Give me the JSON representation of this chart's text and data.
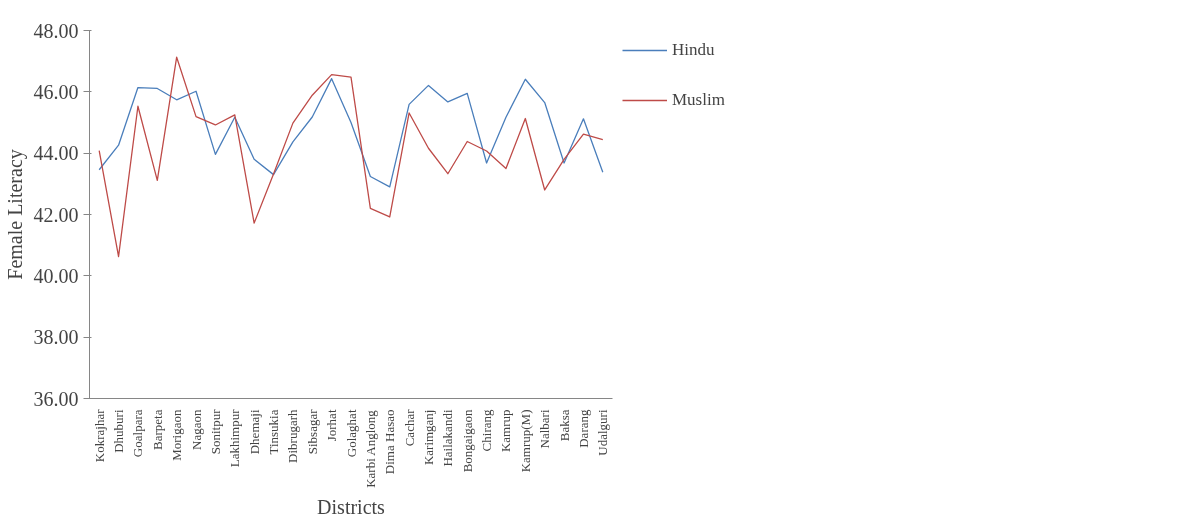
{
  "chart_data": {
    "type": "line",
    "xlabel": "Districts",
    "ylabel": "Female Literacy",
    "categories": [
      "Kokrajhar",
      "Dhuburi",
      "Goalpara",
      "Barpeta",
      "Morigaon",
      "Nagaon",
      "Sonitpur",
      "Lakhimpur",
      "Dhemaji",
      "Tinsukia",
      "Dibrugarh",
      "Sibsagar",
      "Jorhat",
      "Golaghat",
      "Karbi Anglong",
      "Dima Hasao",
      "Cachar",
      "Karimganj",
      "Hailakandi",
      "Bongaigaon",
      "Chirang",
      "Kamrup",
      "Kamrup(M)",
      "Nalbari",
      "Baksa",
      "Darang",
      "Udalguri"
    ],
    "series": [
      {
        "name": "Hindu",
        "color": "#4a7ebb",
        "values": [
          43.46,
          44.26,
          46.14,
          46.11,
          45.74,
          46.02,
          43.96,
          45.17,
          43.8,
          43.3,
          44.37,
          45.18,
          46.43,
          45.0,
          43.24,
          42.9,
          45.59,
          46.21,
          45.67,
          45.95,
          43.68,
          45.17,
          46.41,
          45.65,
          43.68,
          45.12,
          43.38
        ]
      },
      {
        "name": "Muslim",
        "color": "#be4b48",
        "values": [
          44.08,
          40.63,
          45.53,
          43.11,
          47.13,
          45.19,
          44.92,
          45.25,
          41.72,
          43.32,
          44.98,
          45.89,
          46.56,
          46.48,
          42.2,
          41.92,
          45.31,
          44.16,
          43.33,
          44.38,
          44.07,
          43.5,
          45.13,
          42.8,
          43.8,
          44.62,
          44.44
        ]
      }
    ],
    "ylim": [
      36,
      48
    ],
    "yticks": [
      {
        "value": 36,
        "label": "36.00"
      },
      {
        "value": 38,
        "label": "38.00"
      },
      {
        "value": 40,
        "label": "40.00"
      },
      {
        "value": 42,
        "label": "42.00"
      },
      {
        "value": 44,
        "label": "44.00"
      },
      {
        "value": 46,
        "label": "46.00"
      },
      {
        "value": 48,
        "label": "48.00"
      }
    ],
    "grid": false,
    "legend": "right",
    "marker": "none",
    "line_style": "solid"
  }
}
